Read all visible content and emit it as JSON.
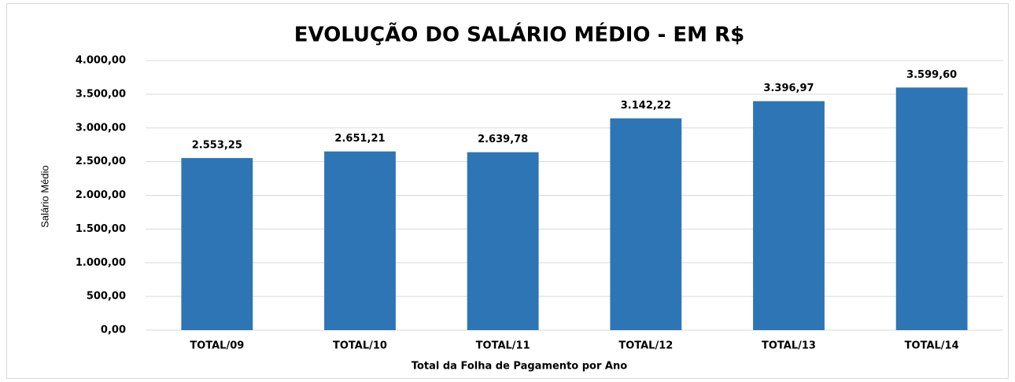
{
  "chart_data": {
    "type": "bar",
    "title": "EVOLUÇÃO DO SALÁRIO MÉDIO - EM R$",
    "x_label": "Total da Folha de Pagamento por Ano",
    "y_label": "Salário Médio",
    "categories": [
      "TOTAL/09",
      "TOTAL/10",
      "TOTAL/11",
      "TOTAL/12",
      "TOTAL/13",
      "TOTAL/14"
    ],
    "values": [
      2553.25,
      2651.21,
      2639.78,
      3142.22,
      3396.97,
      3599.6
    ],
    "value_labels": [
      "2.553,25",
      "2.651,21",
      "2.639,78",
      "3.142,22",
      "3.396,97",
      "3.599,60"
    ],
    "color": "#2e75b6",
    "ylim": [
      0,
      4000
    ],
    "yticks": [
      {
        "value": 0,
        "label": "0,00"
      },
      {
        "value": 500,
        "label": "500,00"
      },
      {
        "value": 1000,
        "label": "1.000,00"
      },
      {
        "value": 1500,
        "label": "1.500,00"
      },
      {
        "value": 2000,
        "label": "2.000,00"
      },
      {
        "value": 2500,
        "label": "2.500,00"
      },
      {
        "value": 3000,
        "label": "3.000,00"
      },
      {
        "value": 3500,
        "label": "3.500,00"
      },
      {
        "value": 4000,
        "label": "4.000,00"
      }
    ],
    "grid": true
  }
}
